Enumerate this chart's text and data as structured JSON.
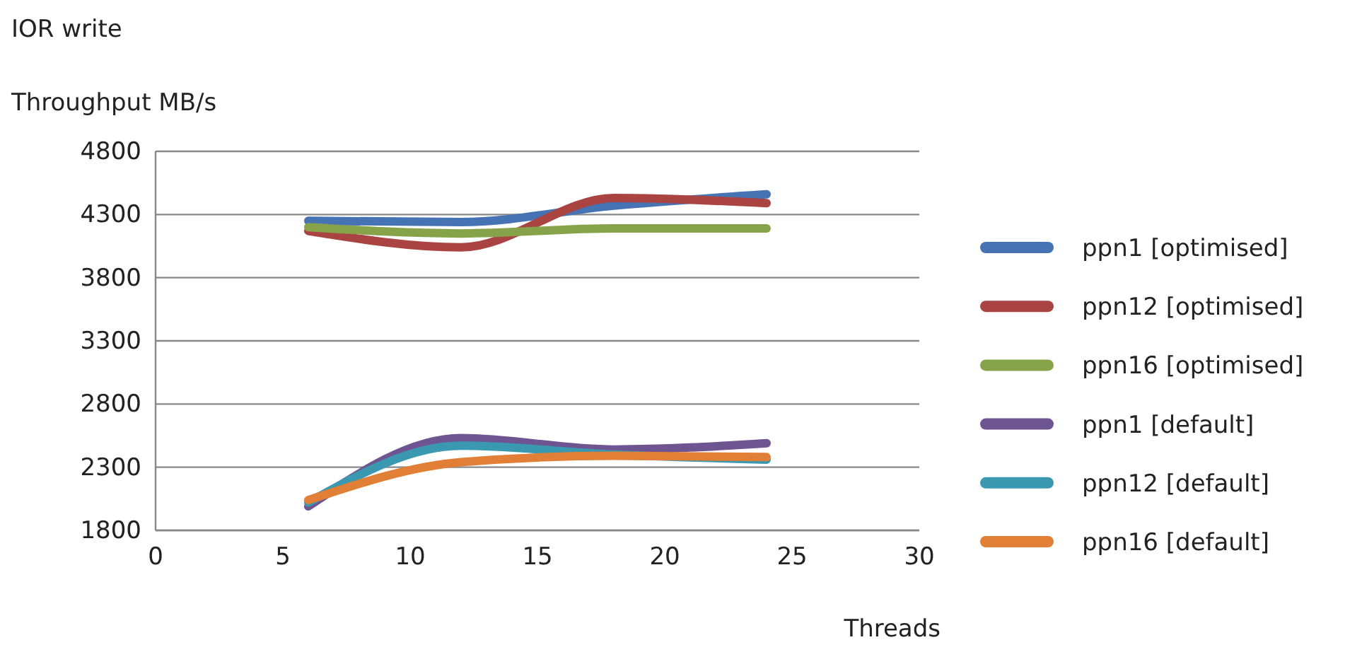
{
  "chart_data": {
    "type": "line",
    "title": "IOR write",
    "ylabel": "Throughput MB/s",
    "xlabel": "Threads",
    "x": [
      6,
      12,
      18,
      24
    ],
    "xlim": [
      0,
      30
    ],
    "xticks": [
      0,
      5,
      10,
      15,
      20,
      25,
      30
    ],
    "ylim": [
      1800,
      4800
    ],
    "yticks": [
      1800,
      2300,
      2800,
      3300,
      3800,
      4300,
      4800
    ],
    "grid": "y",
    "legend": "right",
    "marker": "none",
    "line_style": "solid",
    "series": [
      {
        "name": "ppn1 [optimised]",
        "color": "#4573b4",
        "values": [
          4250,
          4240,
          4370,
          4460
        ]
      },
      {
        "name": "ppn12 [optimised]",
        "color": "#a94442",
        "values": [
          4170,
          4040,
          4430,
          4390
        ]
      },
      {
        "name": "ppn16 [optimised]",
        "color": "#86a34a",
        "values": [
          4200,
          4150,
          4190,
          4190
        ]
      },
      {
        "name": "ppn1 [default]",
        "color": "#6e5592",
        "values": [
          1990,
          2530,
          2440,
          2490
        ]
      },
      {
        "name": "ppn12 [default]",
        "color": "#3a98b0",
        "values": [
          2020,
          2470,
          2400,
          2360
        ]
      },
      {
        "name": "ppn16 [default]",
        "color": "#e07f35",
        "values": [
          2040,
          2340,
          2390,
          2380
        ]
      }
    ]
  }
}
